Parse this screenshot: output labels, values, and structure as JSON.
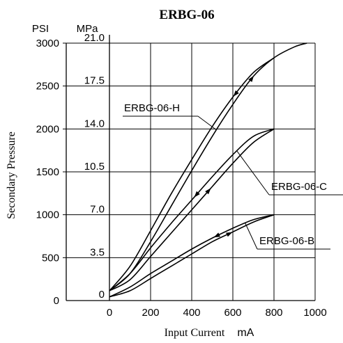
{
  "chart_data": {
    "type": "line",
    "title": "ERBG-06",
    "xlabel": "Input Current",
    "xunit": "mA",
    "ylabel": "Secondary Pressure",
    "unit_psi": "PSI",
    "unit_mpa": "MPa",
    "xlim": [
      0,
      1000
    ],
    "ylim": [
      0,
      21.0
    ],
    "x_ticks": [
      "0",
      "200",
      "400",
      "600",
      "800",
      "1000"
    ],
    "mpa_ticks": [
      "0",
      "3.5",
      "7.0",
      "10.5",
      "14.0",
      "17.5",
      "21.0"
    ],
    "psi_ticks": [
      "0",
      "500",
      "1000",
      "1500",
      "2000",
      "2500",
      "3000"
    ],
    "grid": true,
    "series": [
      {
        "name": "ERBG-06-H",
        "increasing": {
          "x": [
            0,
            100,
            200,
            300,
            400,
            500,
            600,
            700,
            800,
            900,
            960
          ],
          "y": [
            0.8,
            2.2,
            4.8,
            7.7,
            10.6,
            13.4,
            16.0,
            18.3,
            19.8,
            20.7,
            21.0
          ]
        },
        "decreasing": {
          "x": [
            0,
            100,
            200,
            300,
            400,
            500,
            600,
            700,
            800
          ],
          "y": [
            0.8,
            2.8,
            5.7,
            8.7,
            11.5,
            14.2,
            16.6,
            18.6,
            19.8
          ]
        }
      },
      {
        "name": "ERBG-06-C",
        "increasing": {
          "x": [
            0,
            100,
            200,
            300,
            400,
            500,
            600,
            700,
            800
          ],
          "y": [
            0.8,
            1.7,
            3.6,
            5.5,
            7.4,
            9.3,
            11.2,
            12.9,
            14.0
          ]
        },
        "decreasing": {
          "x": [
            0,
            100,
            200,
            300,
            400,
            500,
            600,
            700,
            800
          ],
          "y": [
            0.8,
            2.2,
            4.3,
            6.3,
            8.2,
            10.1,
            11.9,
            13.4,
            14.0
          ]
        }
      },
      {
        "name": "ERBG-06-B",
        "increasing": {
          "x": [
            0,
            100,
            200,
            300,
            400,
            500,
            600,
            700,
            800
          ],
          "y": [
            0.3,
            0.8,
            1.8,
            2.8,
            3.8,
            4.8,
            5.6,
            6.4,
            7.0
          ]
        },
        "decreasing": {
          "x": [
            0,
            100,
            200,
            300,
            400,
            500,
            600,
            700,
            800
          ],
          "y": [
            0.3,
            1.1,
            2.2,
            3.2,
            4.2,
            5.1,
            5.9,
            6.6,
            7.0
          ]
        }
      }
    ]
  }
}
